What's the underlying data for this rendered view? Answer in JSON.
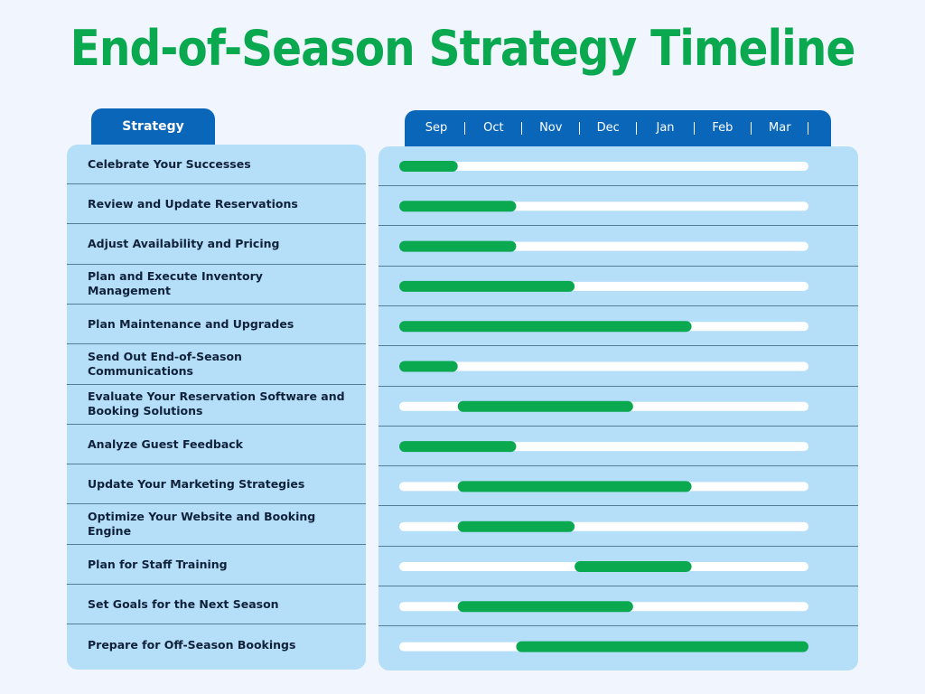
{
  "chart_data": {
    "type": "gantt",
    "title": "End-of-Season Strategy Timeline",
    "category_header": "Strategy",
    "months": [
      "Sep",
      "Oct",
      "Nov",
      "Dec",
      "Jan",
      "Feb",
      "Mar"
    ],
    "categories": [
      "Celebrate Your Successes",
      "Review and Update Reservations",
      "Adjust Availability and Pricing",
      "Plan and Execute Inventory Management",
      "Plan Maintenance and Upgrades",
      "Send Out End-of-Season Communications",
      "Evaluate Your Reservation Software and Booking Solutions",
      "Analyze Guest Feedback",
      "Update Your Marketing Strategies",
      "Optimize Your Website and Booking Engine",
      "Plan for Staff Training",
      "Set Goals for the Next Season",
      "Prepare for Off-Season Bookings"
    ],
    "start": [
      0,
      0,
      0,
      0,
      0,
      0,
      1,
      0,
      1,
      1,
      3,
      1,
      2
    ],
    "end": [
      1,
      2,
      2,
      3,
      5,
      1,
      4,
      2,
      5,
      3,
      5,
      4,
      7
    ],
    "xlim": [
      0,
      7
    ],
    "color": "#0aa84f",
    "track_color": "#ffffff",
    "header_color": "#0a66b8"
  }
}
